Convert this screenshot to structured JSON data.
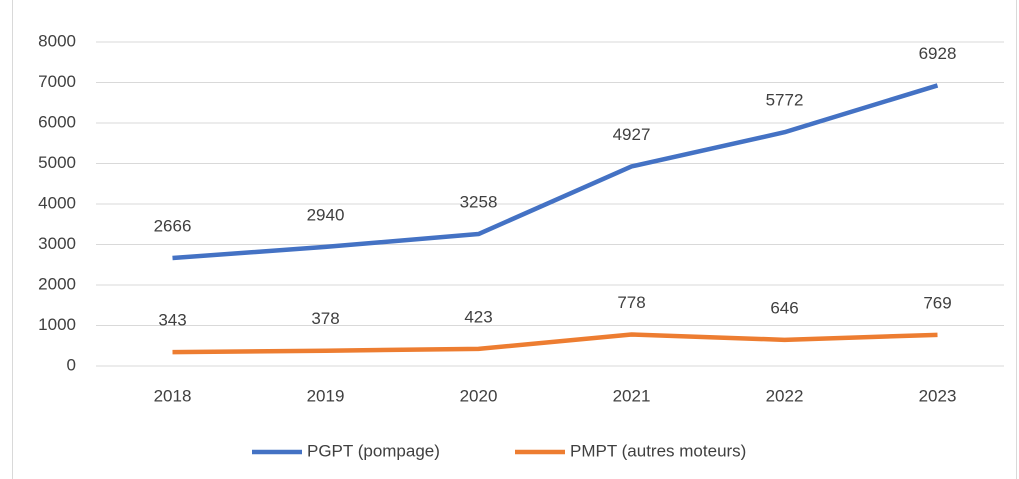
{
  "chart_data": {
    "type": "line",
    "categories": [
      "2018",
      "2019",
      "2020",
      "2021",
      "2022",
      "2023"
    ],
    "series": [
      {
        "name": "PGPT (pompage)",
        "color": "#4472c4",
        "values": [
          2666,
          2940,
          3258,
          4927,
          5772,
          6928
        ]
      },
      {
        "name": "PMPT (autres moteurs)",
        "color": "#ed7d31",
        "values": [
          343,
          378,
          423,
          778,
          646,
          769
        ]
      }
    ],
    "ylim": [
      0,
      8000
    ],
    "yticks": [
      0,
      1000,
      2000,
      3000,
      4000,
      5000,
      6000,
      7000,
      8000
    ],
    "grid": true,
    "legend": "bottom"
  }
}
